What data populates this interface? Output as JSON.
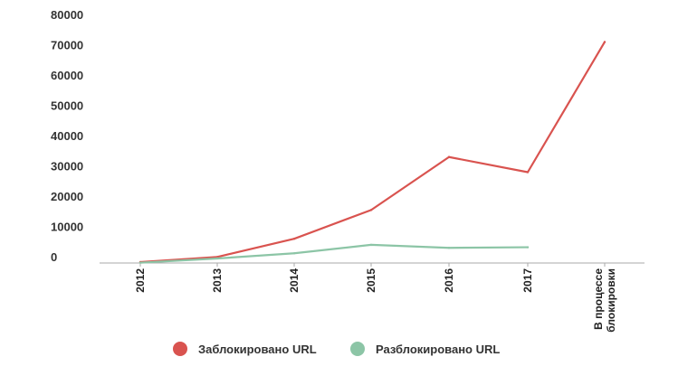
{
  "chart_data": {
    "type": "line",
    "categories": [
      "2012",
      "2013",
      "2014",
      "2015",
      "2016",
      "2017",
      "В процессе блокировки"
    ],
    "y_ticks": [
      "0",
      "10000",
      "20000",
      "30000",
      "40000",
      "50000",
      "60000",
      "70000",
      "80000"
    ],
    "ylim": [
      0,
      80000
    ],
    "grid": false,
    "legend_position": "bottom-center",
    "series": [
      {
        "name": "Заблокировано URL",
        "color": "#d9534f",
        "values": [
          300,
          2000,
          8000,
          17500,
          35000,
          30000,
          73000
        ]
      },
      {
        "name": "Разблокировано URL",
        "color": "#8cc5a6",
        "values": [
          100,
          1500,
          3200,
          6000,
          5000,
          5200,
          null
        ]
      }
    ]
  }
}
